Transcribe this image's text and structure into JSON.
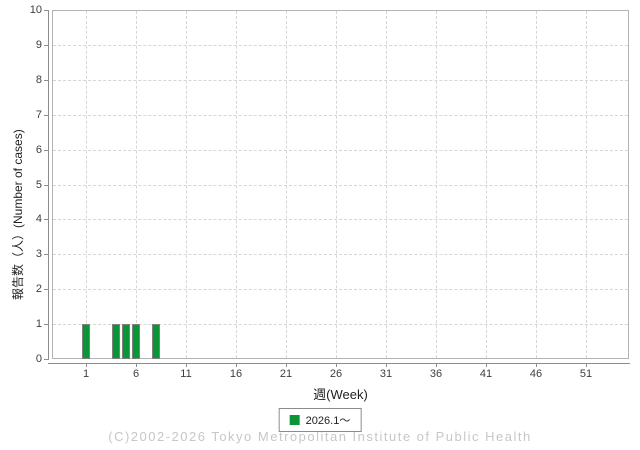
{
  "chart_data": {
    "type": "bar",
    "title": "",
    "xlabel": "週(Week)",
    "ylabel": "報告数（人）(Number of cases)",
    "x": [
      1,
      4,
      5,
      6,
      8
    ],
    "values": [
      1,
      1,
      1,
      1,
      1
    ],
    "series_name": "2026.1～",
    "xlim": [
      0,
      53
    ],
    "ylim": [
      0,
      10
    ],
    "x_ticks": [
      1,
      6,
      11,
      16,
      21,
      26,
      31,
      36,
      41,
      46,
      51
    ],
    "y_ticks": [
      0,
      1,
      2,
      3,
      4,
      5,
      6,
      7,
      8,
      9,
      10
    ],
    "grid": "dashed",
    "legend_position": "bottom-center",
    "bar_color": "#0a9636",
    "bar_outline_color": "#7f7f7f"
  },
  "legend": {
    "label": "2026.1～",
    "swatch_color": "#0a9636"
  },
  "footer": {
    "copyright": "(C)2002-2026 Tokyo Metropolitan Institute of Public Health"
  }
}
